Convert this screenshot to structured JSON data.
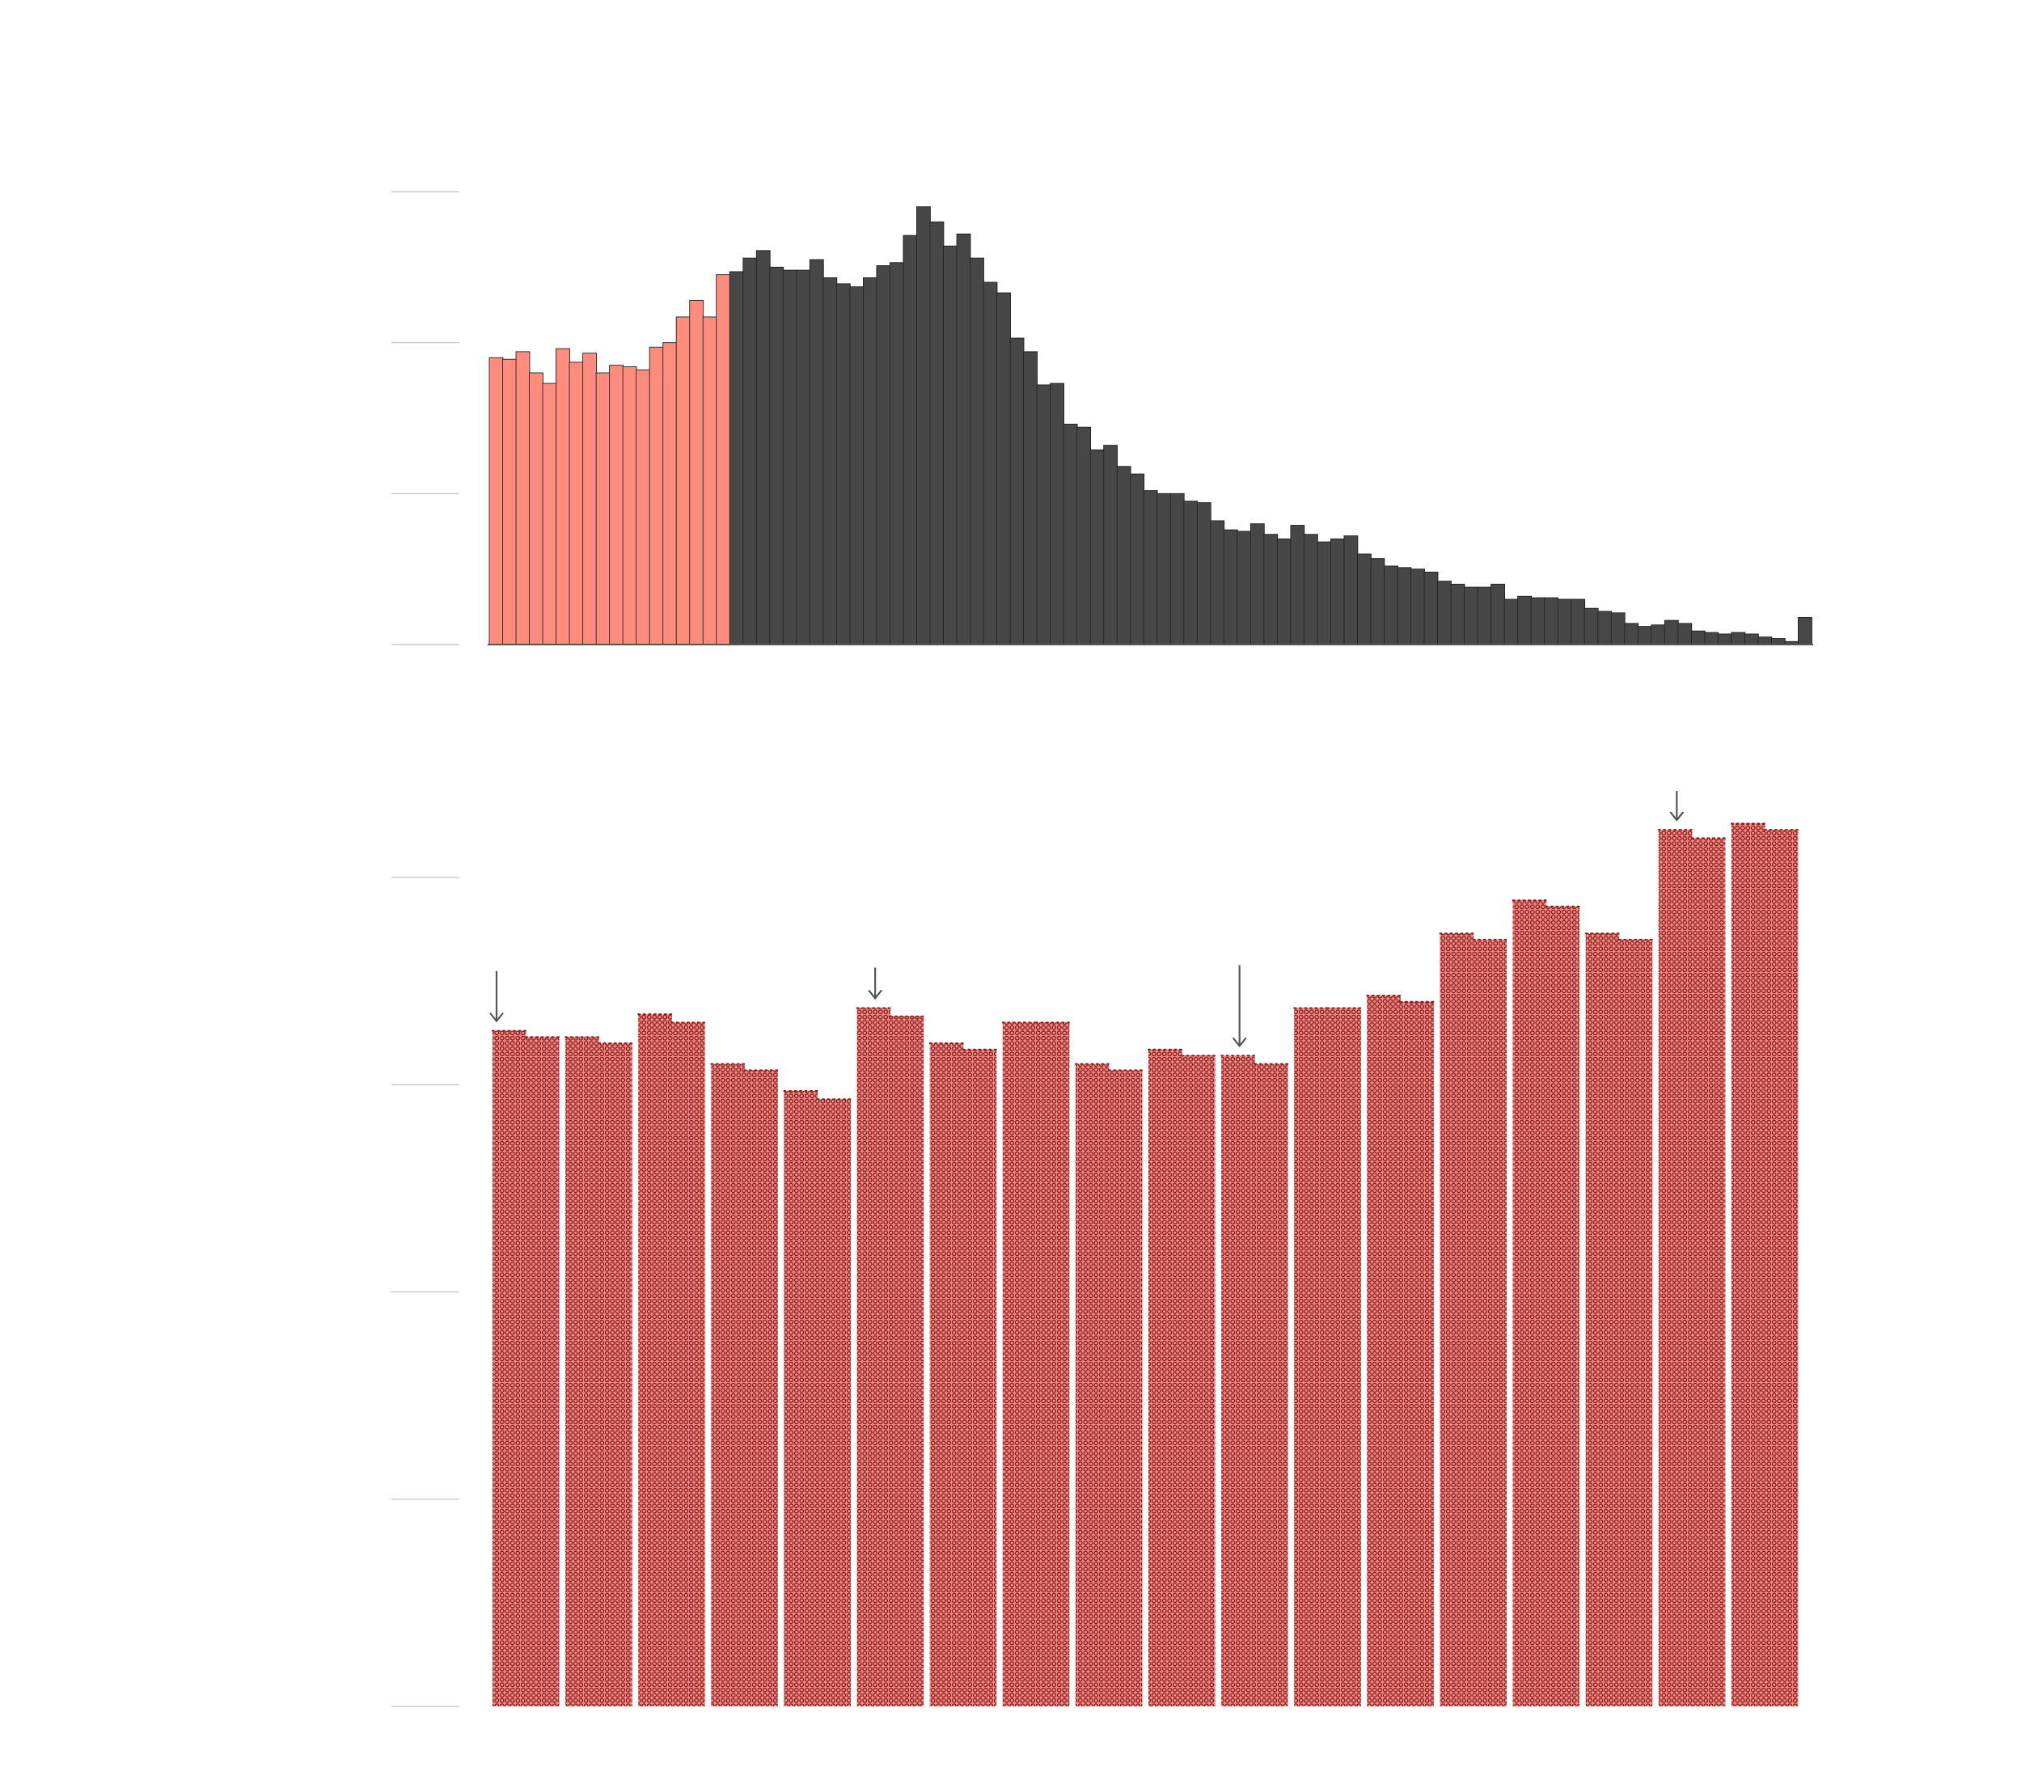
{
  "colors": {
    "background": "#ffffff",
    "gridline": "#cccccc",
    "axis": "#555555",
    "top_early": "#ff8c7c",
    "top_main": "#474747",
    "bar_outline": "#222222",
    "bottom_fill": "#f08a85",
    "bottom_dot": "#8b1d1d",
    "arrow": "#555555"
  },
  "chart_data": [
    {
      "type": "bar",
      "title": "",
      "xlabel": "",
      "ylabel": "",
      "grid": true,
      "legend": "none",
      "ylim": [
        0,
        3
      ],
      "gridlines": [
        0,
        1,
        2,
        3
      ],
      "highlight_count": 18,
      "values": [
        1.9,
        1.89,
        1.94,
        1.8,
        1.73,
        1.96,
        1.87,
        1.93,
        1.8,
        1.85,
        1.84,
        1.82,
        1.97,
        2.0,
        2.17,
        2.28,
        2.17,
        2.45,
        2.47,
        2.56,
        2.61,
        2.5,
        2.48,
        2.48,
        2.55,
        2.43,
        2.39,
        2.37,
        2.43,
        2.51,
        2.53,
        2.71,
        2.9,
        2.8,
        2.64,
        2.72,
        2.56,
        2.4,
        2.33,
        2.03,
        1.94,
        1.72,
        1.73,
        1.46,
        1.44,
        1.29,
        1.32,
        1.18,
        1.13,
        1.02,
        1.0,
        1.0,
        0.95,
        0.94,
        0.82,
        0.76,
        0.75,
        0.8,
        0.73,
        0.7,
        0.79,
        0.73,
        0.68,
        0.7,
        0.72,
        0.6,
        0.57,
        0.52,
        0.51,
        0.5,
        0.48,
        0.42,
        0.4,
        0.38,
        0.38,
        0.4,
        0.3,
        0.32,
        0.31,
        0.31,
        0.3,
        0.3,
        0.24,
        0.22,
        0.21,
        0.14,
        0.12,
        0.13,
        0.16,
        0.14,
        0.09,
        0.08,
        0.07,
        0.08,
        0.07,
        0.05,
        0.04,
        0.02,
        0.18
      ]
    },
    {
      "type": "bar",
      "title": "",
      "xlabel": "",
      "ylabel": "",
      "grid": true,
      "legend": "none",
      "ylim": [
        0,
        4
      ],
      "gridlines": [
        0,
        1,
        2,
        3,
        4
      ],
      "pattern": "dotted",
      "groups": [
        {
          "values": [
            3.26,
            3.23
          ]
        },
        {
          "values": [
            3.23,
            3.2
          ]
        },
        {
          "values": [
            3.34,
            3.3
          ]
        },
        {
          "values": [
            3.1,
            3.07
          ]
        },
        {
          "values": [
            2.97,
            2.93
          ]
        },
        {
          "values": [
            3.37,
            3.33
          ]
        },
        {
          "values": [
            3.2,
            3.17
          ]
        },
        {
          "values": [
            3.3,
            3.3
          ]
        },
        {
          "values": [
            3.1,
            3.07
          ]
        },
        {
          "values": [
            3.17,
            3.14
          ]
        },
        {
          "values": [
            3.14,
            3.1
          ]
        },
        {
          "values": [
            3.37,
            3.37
          ]
        },
        {
          "values": [
            3.43,
            3.4
          ]
        },
        {
          "values": [
            3.73,
            3.7
          ]
        },
        {
          "values": [
            3.89,
            3.86
          ]
        },
        {
          "values": [
            3.73,
            3.7
          ]
        },
        {
          "values": [
            4.23,
            4.19
          ]
        },
        {
          "values": [
            4.26,
            4.23
          ]
        }
      ],
      "annotations": [
        {
          "group": 0,
          "value": 3.26,
          "type": "arrow-down"
        },
        {
          "group": 5,
          "value": 3.37,
          "type": "arrow-down"
        },
        {
          "group": 10,
          "value": 3.14,
          "type": "arrow-down"
        },
        {
          "group": 16,
          "value": 4.23,
          "type": "arrow-down"
        }
      ]
    }
  ]
}
